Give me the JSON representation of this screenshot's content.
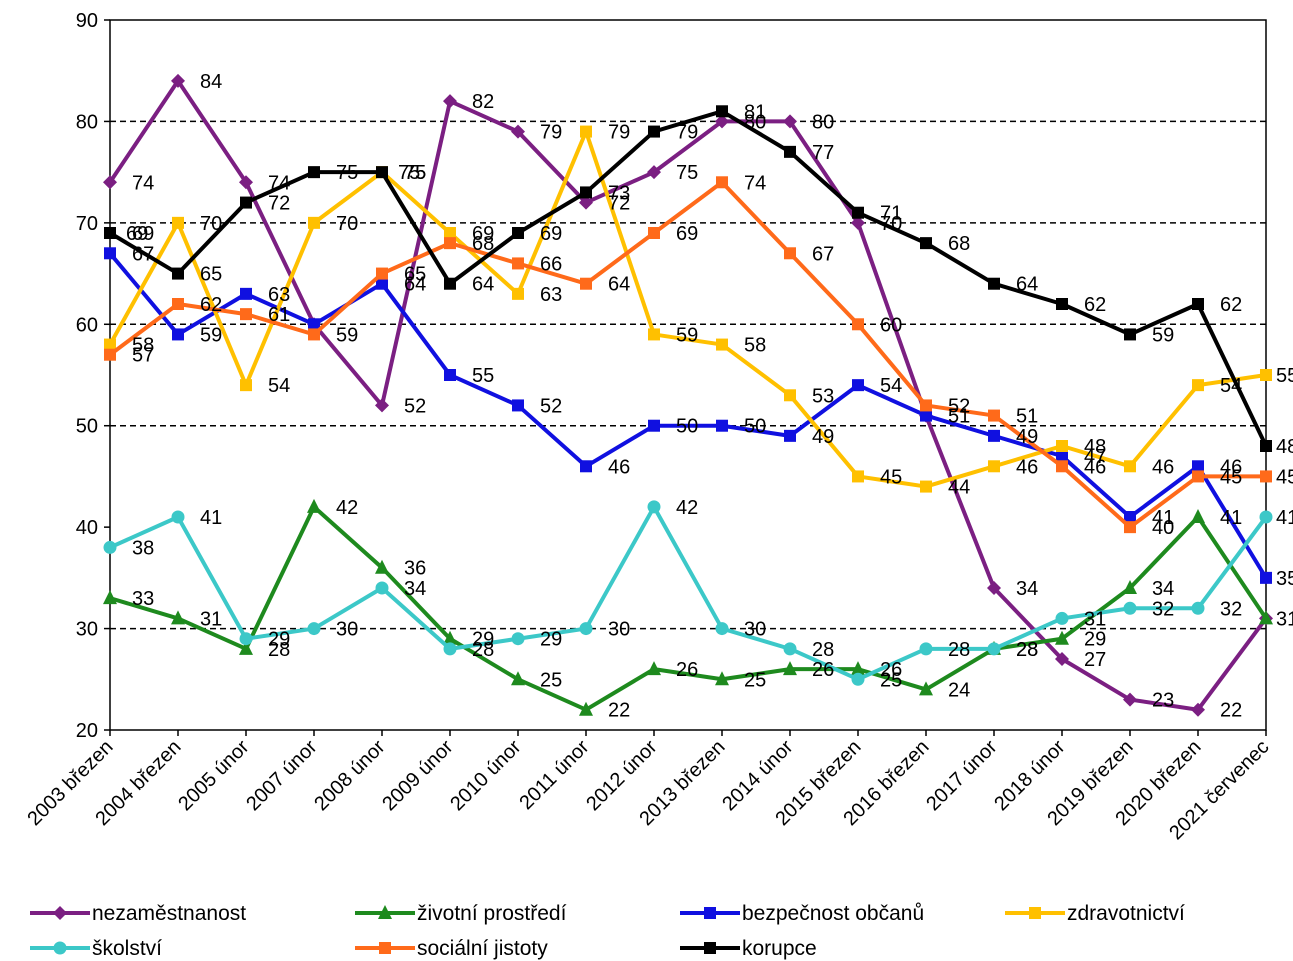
{
  "chart_data": {
    "type": "line",
    "title": "",
    "xlabel": "",
    "ylabel": "",
    "ylim": [
      20,
      90
    ],
    "yticks": [
      "20",
      "30",
      "40",
      "50",
      "60",
      "70",
      "80",
      "90"
    ],
    "grid": "horizontal dashed at 30, 50, 60, 70, 80",
    "legend_position": "bottom",
    "categories": [
      "2003 březen",
      "2004 březen",
      "2005  únor",
      "2007  únor",
      "2008  únor",
      "2009  únor",
      "2010  únor",
      "2011  únor",
      "2012 únor",
      "2013 březen",
      "2014 únor",
      "2015 březen",
      "2016 březen",
      "2017 únor",
      "2018 únor",
      "2019 březen",
      "2020 březen",
      "2021 červenec"
    ],
    "series": [
      {
        "name": "nezaměstnanost",
        "color": "#7B1F82",
        "marker": "diamond",
        "values": [
          74,
          84,
          74,
          60,
          52,
          82,
          79,
          72,
          75,
          80,
          80,
          70,
          51,
          34,
          27,
          23,
          22,
          31
        ],
        "labels": [
          "74",
          "84",
          "74",
          "",
          "52",
          "82",
          "79",
          "72",
          "75",
          "80",
          "80",
          "70",
          "",
          "34",
          "27",
          "23",
          "22",
          ""
        ]
      },
      {
        "name": "životní prostředí",
        "color": "#1E8A1E",
        "marker": "triangle",
        "values": [
          33,
          31,
          28,
          42,
          36,
          29,
          25,
          22,
          26,
          25,
          26,
          26,
          24,
          28,
          29,
          34,
          41,
          31
        ],
        "labels": [
          "33",
          "31",
          "28",
          "42",
          "36",
          "29",
          "25",
          "22",
          "26",
          "25",
          "26",
          "26",
          "24",
          "28",
          "29",
          "34",
          "41",
          "31"
        ]
      },
      {
        "name": "bezpečnost občanů",
        "color": "#1010E0",
        "marker": "square",
        "values": [
          67,
          59,
          63,
          60,
          64,
          55,
          52,
          46,
          50,
          50,
          49,
          54,
          51,
          49,
          47,
          41,
          46,
          35
        ],
        "labels": [
          "67",
          "59",
          "63",
          "",
          "64",
          "55",
          "52",
          "46",
          "50",
          "50",
          "49",
          "54",
          "51",
          "49",
          "47",
          "41",
          "46",
          "35"
        ]
      },
      {
        "name": "zdravotnictví",
        "color": "#FFC000",
        "marker": "square",
        "values": [
          58,
          70,
          54,
          70,
          75,
          69,
          63,
          79,
          59,
          58,
          53,
          45,
          44,
          46,
          48,
          46,
          54,
          55
        ],
        "labels": [
          "58",
          "70",
          "54",
          "70",
          "75",
          "69",
          "63",
          "79",
          "59",
          "58",
          "53",
          "45",
          "44",
          "46",
          "48",
          "46",
          "54",
          "55"
        ]
      },
      {
        "name": "školství",
        "color": "#3CC8C8",
        "marker": "circle",
        "values": [
          38,
          41,
          29,
          30,
          34,
          28,
          29,
          30,
          42,
          30,
          28,
          25,
          28,
          28,
          31,
          32,
          32,
          41
        ],
        "labels": [
          "38",
          "41",
          "29",
          "30",
          "34",
          "28",
          "29",
          "30",
          "42",
          "30",
          "28",
          "25",
          "28",
          "28",
          "31",
          "32",
          "32",
          "41"
        ]
      },
      {
        "name": "sociální jistoty",
        "color": "#FF6A1A",
        "marker": "square",
        "values": [
          57,
          62,
          61,
          59,
          65,
          68,
          66,
          64,
          69,
          74,
          67,
          60,
          52,
          51,
          46,
          40,
          45,
          45
        ],
        "labels": [
          "57",
          "62",
          "61",
          "59",
          "65",
          "68",
          "66",
          "64",
          "69",
          "74",
          "67",
          "60",
          "52",
          "51",
          "46",
          "40",
          "45",
          "45"
        ]
      },
      {
        "name": "korupce",
        "color": "#000000",
        "marker": "square",
        "values": [
          69,
          65,
          72,
          75,
          75,
          64,
          69,
          73,
          79,
          81,
          77,
          71,
          68,
          64,
          62,
          59,
          62,
          48
        ],
        "labels": [
          "69",
          "65",
          "72",
          "75",
          "75",
          "64",
          "69",
          "73",
          "79",
          "81",
          "77",
          "71",
          "68",
          "64",
          "62",
          "59",
          "62",
          "48"
        ]
      }
    ],
    "extra_labels": [
      {
        "text": "69",
        "category": 0,
        "value": 69
      },
      {
        "text": "75",
        "category": 4,
        "value": 75
      }
    ]
  }
}
